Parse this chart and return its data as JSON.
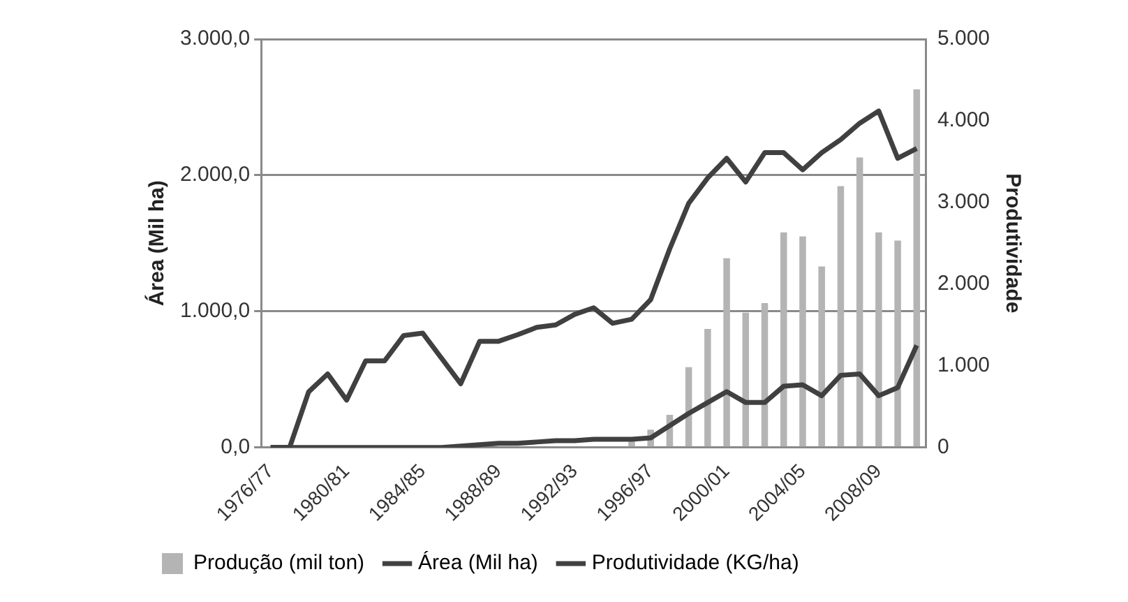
{
  "chart_data": {
    "type": "bar",
    "ylabel": "Área (Mil ha)",
    "y2label": "Produtividade",
    "categories": [
      "1976/77",
      null,
      null,
      null,
      "1980/81",
      null,
      null,
      null,
      "1984/85",
      null,
      null,
      null,
      "1988/89",
      null,
      null,
      null,
      "1992/93",
      null,
      null,
      null,
      "1996/97",
      null,
      null,
      null,
      "2000/01",
      null,
      null,
      null,
      "2004/05",
      null,
      null,
      null,
      "2008/09",
      null,
      null
    ],
    "series": [
      {
        "name": "Produção (mil ton)",
        "axis": "y",
        "color": "#b4b4b4",
        "values": [
          0,
          0,
          0,
          0,
          0,
          0,
          0,
          0,
          0,
          0,
          0,
          0,
          0,
          0,
          0,
          0,
          0,
          0,
          0,
          60,
          130,
          240,
          590,
          870,
          1390,
          990,
          1060,
          1580,
          1550,
          1330,
          1920,
          2130,
          1580,
          1520,
          2630
        ]
      },
      {
        "name": "Área (Mil ha)",
        "type": "line",
        "axis": "y",
        "color": "#404040",
        "values": [
          0,
          0,
          0,
          0,
          0,
          0,
          0,
          0,
          0,
          0,
          10,
          20,
          30,
          30,
          40,
          50,
          50,
          60,
          60,
          60,
          70,
          160,
          250,
          330,
          410,
          330,
          330,
          450,
          460,
          380,
          530,
          540,
          380,
          440,
          750
        ]
      },
      {
        "name": "Produtividade (KG/ha)",
        "type": "line",
        "axis": "y2",
        "color": "#404040",
        "values": [
          0,
          0,
          680,
          900,
          580,
          1060,
          1060,
          1370,
          1400,
          1090,
          780,
          1300,
          1300,
          1380,
          1470,
          1500,
          1630,
          1710,
          1520,
          1570,
          1810,
          2430,
          2990,
          3300,
          3540,
          3250,
          3610,
          3610,
          3400,
          3610,
          3770,
          3970,
          4120,
          3540,
          3660
        ]
      }
    ],
    "ylim": [
      0,
      3000
    ],
    "yticks": [
      {
        "value": 0,
        "label": "0,0"
      },
      {
        "value": 1000,
        "label": "1.000,0"
      },
      {
        "value": 2000,
        "label": "2.000,0"
      },
      {
        "value": 3000,
        "label": "3.000,0"
      }
    ],
    "y2lim": [
      0,
      5000
    ],
    "y2ticks": [
      0,
      {
        "value": 1000,
        "label": "1.000"
      },
      {
        "value": 2000,
        "label": "2.000"
      },
      {
        "value": 3000,
        "label": "3.000"
      },
      {
        "value": 4000,
        "label": "4.000"
      },
      {
        "value": 5000,
        "label": "5.000"
      }
    ],
    "grid": "y",
    "legend": "bottom"
  }
}
